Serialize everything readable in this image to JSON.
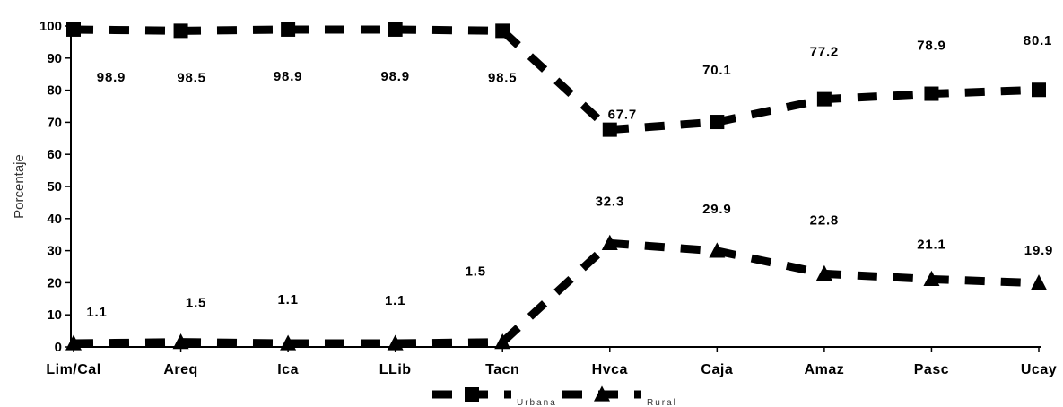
{
  "chart_data": {
    "type": "line",
    "title": "",
    "xlabel": "",
    "ylabel": "Porcentaje",
    "ylim": [
      0,
      100
    ],
    "yticks": [
      0,
      10,
      20,
      30,
      40,
      50,
      60,
      70,
      80,
      90,
      100
    ],
    "grid": false,
    "legend": "bottom",
    "categories": [
      "Lim/Cal",
      "Areq",
      "Ica",
      "LLib",
      "Tacn",
      "Hvca",
      "Caja",
      "Amaz",
      "Pasc",
      "Ucay"
    ],
    "series": [
      {
        "name": "Urbana",
        "marker": "square",
        "color": "#000000",
        "values": [
          98.9,
          98.5,
          98.9,
          98.9,
          98.5,
          67.7,
          70.1,
          77.2,
          78.9,
          80.1
        ],
        "labels": [
          "98.9",
          "98.5",
          "98.9",
          "98.9",
          "98.5",
          "67.7",
          "70.1",
          "77.2",
          "78.9",
          "80.1"
        ]
      },
      {
        "name": "Rural",
        "marker": "triangle",
        "color": "#000000",
        "values": [
          1.1,
          1.5,
          1.1,
          1.1,
          1.5,
          32.3,
          29.9,
          22.8,
          21.1,
          19.9
        ],
        "labels": [
          "1.1",
          "1.5",
          "1.1",
          "1.1",
          "1.5",
          "32.3",
          "29.9",
          "22.8",
          "21.1",
          "19.9"
        ]
      }
    ]
  }
}
